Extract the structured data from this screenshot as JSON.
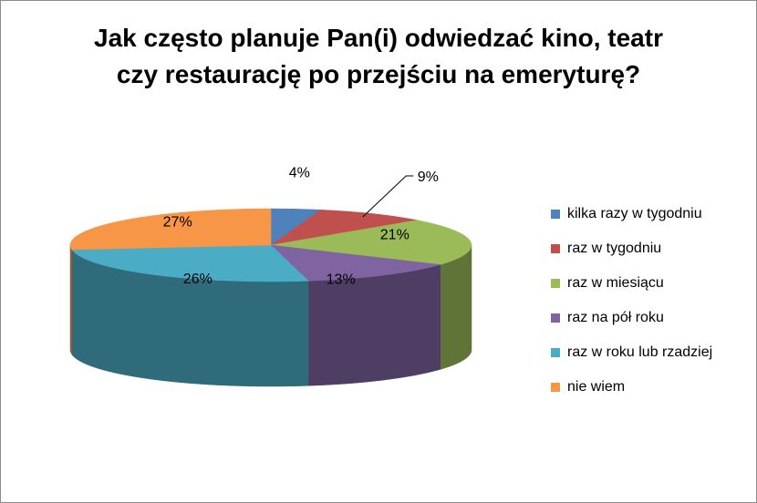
{
  "chart_data": {
    "type": "pie",
    "title_lines": [
      "Jak często planuje Pan(i) odwiedzać kino, teatr",
      "czy restaurację po przejściu na emeryturę?"
    ],
    "legend_position": "right",
    "slices": [
      {
        "label": "kilka razy w tygodniu",
        "value": 4,
        "value_label": "4%",
        "color": "#4F81BD"
      },
      {
        "label": "raz w tygodniu",
        "value": 9,
        "value_label": "9%",
        "color": "#C0504D"
      },
      {
        "label": "raz w miesiącu",
        "value": 21,
        "value_label": "21%",
        "color": "#9BBB59"
      },
      {
        "label": "raz na pół roku",
        "value": 13,
        "value_label": "13%",
        "color": "#8064A2"
      },
      {
        "label": "raz w roku lub rzadziej",
        "value": 26,
        "value_label": "26%",
        "color": "#4BACC6"
      },
      {
        "label": "nie wiem",
        "value": 27,
        "value_label": "27%",
        "color": "#F79646"
      }
    ]
  }
}
